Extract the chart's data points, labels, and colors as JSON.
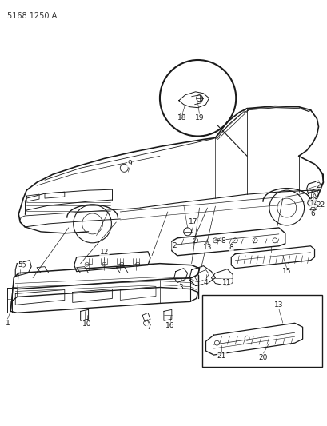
{
  "title": "5168 1250 A",
  "bg_color": "#ffffff",
  "line_color": "#1a1a1a",
  "fig_width": 4.1,
  "fig_height": 5.33,
  "dpi": 100
}
